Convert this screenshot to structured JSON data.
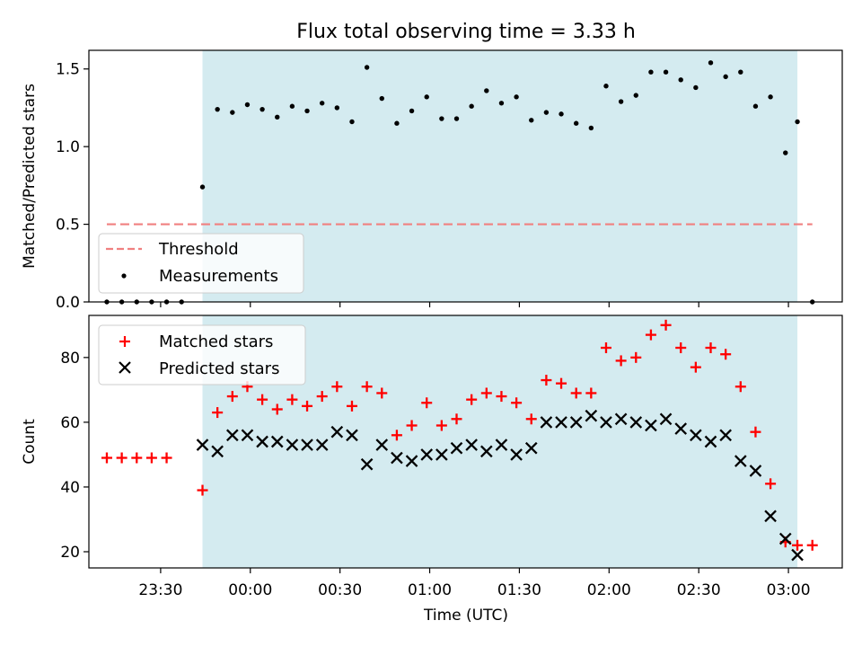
{
  "title": "Flux total observing time = 3.33 h",
  "colors": {
    "shade": "#d4ebf0",
    "threshold": "#f08080",
    "matched": "#ff0000",
    "predicted": "#000000",
    "measure": "#000000"
  },
  "x_axis": {
    "label": "Time (UTC)",
    "tick_labels": [
      "23:30",
      "00:00",
      "00:30",
      "01:00",
      "01:30",
      "02:00",
      "02:30",
      "03:00"
    ],
    "tick_minutes": [
      1410,
      1440,
      1470,
      1500,
      1530,
      1560,
      1590,
      1620
    ],
    "range": [
      1386,
      1638
    ]
  },
  "chart_data": [
    {
      "type": "scatter",
      "ylabel": "Matched/Predicted stars",
      "ylim": [
        0,
        1.62
      ],
      "y_tick_labels": [
        "0.0",
        "0.5",
        "1.0",
        "1.5"
      ],
      "y_ticks": [
        0,
        0.5,
        1.0,
        1.5
      ],
      "shaded_interval": [
        "23:44",
        "03:03"
      ],
      "threshold": {
        "name": "Threshold",
        "value": 0.5,
        "x_range": [
          "23:12",
          "03:08"
        ]
      },
      "legend": {
        "position": "lower left",
        "entries": [
          "Threshold",
          "Measurements"
        ]
      },
      "series": [
        {
          "name": "Measurements",
          "marker": "dot",
          "x": [
            "23:12",
            "23:17",
            "23:22",
            "23:27",
            "23:32",
            "23:37",
            "23:44",
            "23:49",
            "23:54",
            "23:59",
            "00:04",
            "00:09",
            "00:14",
            "00:19",
            "00:24",
            "00:29",
            "00:34",
            "00:39",
            "00:44",
            "00:49",
            "00:54",
            "00:59",
            "01:04",
            "01:09",
            "01:14",
            "01:19",
            "01:24",
            "01:29",
            "01:34",
            "01:39",
            "01:44",
            "01:49",
            "01:54",
            "01:59",
            "02:04",
            "02:09",
            "02:14",
            "02:19",
            "02:24",
            "02:29",
            "02:34",
            "02:39",
            "02:44",
            "02:49",
            "02:54",
            "02:59",
            "03:03",
            "03:08"
          ],
          "y": [
            0,
            0,
            0,
            0,
            0,
            0,
            0.74,
            1.24,
            1.22,
            1.27,
            1.24,
            1.19,
            1.26,
            1.23,
            1.28,
            1.25,
            1.16,
            1.51,
            1.31,
            1.15,
            1.23,
            1.32,
            1.18,
            1.18,
            1.26,
            1.36,
            1.28,
            1.32,
            1.17,
            1.22,
            1.21,
            1.15,
            1.12,
            1.39,
            1.29,
            1.33,
            1.48,
            1.48,
            1.43,
            1.38,
            1.54,
            1.45,
            1.48,
            1.26,
            1.32,
            0.96,
            1.16,
            0
          ]
        }
      ]
    },
    {
      "type": "scatter",
      "ylabel": "Count",
      "ylim": [
        15,
        93
      ],
      "y_tick_labels": [
        "20",
        "40",
        "60",
        "80"
      ],
      "y_ticks": [
        20,
        40,
        60,
        80
      ],
      "shaded_interval": [
        "23:44",
        "03:03"
      ],
      "legend": {
        "position": "upper left",
        "entries": [
          "Matched stars",
          "Predicted stars"
        ]
      },
      "series": [
        {
          "name": "Matched stars",
          "marker": "plus",
          "x": [
            "23:12",
            "23:17",
            "23:22",
            "23:27",
            "23:32",
            "23:37",
            "23:44",
            "23:49",
            "23:54",
            "23:59",
            "00:04",
            "00:09",
            "00:14",
            "00:19",
            "00:24",
            "00:29",
            "00:34",
            "00:39",
            "00:44",
            "00:49",
            "00:54",
            "00:59",
            "01:04",
            "01:09",
            "01:14",
            "01:19",
            "01:24",
            "01:29",
            "01:34",
            "01:39",
            "01:44",
            "01:49",
            "01:54",
            "01:59",
            "02:04",
            "02:09",
            "02:14",
            "02:19",
            "02:24",
            "02:29",
            "02:34",
            "02:39",
            "02:44",
            "02:49",
            "02:54",
            "02:59",
            "03:03",
            "03:08"
          ],
          "y": [
            49,
            49,
            49,
            49,
            49,
            null,
            39,
            63,
            68,
            71,
            67,
            64,
            67,
            65,
            68,
            71,
            65,
            71,
            69,
            56,
            59,
            66,
            59,
            61,
            67,
            69,
            68,
            66,
            61,
            73,
            72,
            69,
            69,
            83,
            79,
            80,
            87,
            90,
            83,
            77,
            83,
            81,
            71,
            57,
            41,
            23,
            22,
            22
          ]
        },
        {
          "name": "Predicted stars",
          "marker": "x",
          "x": [
            "23:44",
            "23:49",
            "23:54",
            "23:59",
            "00:04",
            "00:09",
            "00:14",
            "00:19",
            "00:24",
            "00:29",
            "00:34",
            "00:39",
            "00:44",
            "00:49",
            "00:54",
            "00:59",
            "01:04",
            "01:09",
            "01:14",
            "01:19",
            "01:24",
            "01:29",
            "01:34",
            "01:39",
            "01:44",
            "01:49",
            "01:54",
            "01:59",
            "02:04",
            "02:09",
            "02:14",
            "02:19",
            "02:24",
            "02:29",
            "02:34",
            "02:39",
            "02:44",
            "02:49",
            "02:54",
            "02:59",
            "03:03"
          ],
          "y": [
            53,
            51,
            56,
            56,
            54,
            54,
            53,
            53,
            53,
            57,
            56,
            47,
            53,
            49,
            48,
            50,
            50,
            52,
            53,
            51,
            53,
            50,
            52,
            60,
            60,
            60,
            62,
            60,
            61,
            60,
            59,
            61,
            58,
            56,
            54,
            56,
            48,
            45,
            31,
            24,
            19
          ]
        }
      ]
    }
  ]
}
